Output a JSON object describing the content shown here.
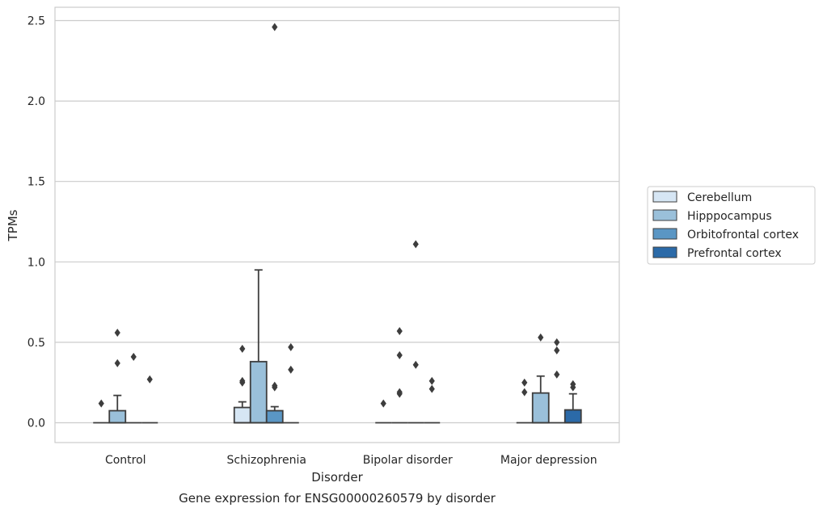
{
  "chart_data": {
    "type": "box",
    "title": "Gene expression for ENSG00000260579 by disorder",
    "xlabel": "Disorder",
    "ylabel": "TPMs",
    "ylim": [
      -0.12,
      2.59
    ],
    "yticks": [
      0.0,
      0.5,
      1.0,
      1.5,
      2.0,
      2.5
    ],
    "ytick_labels": [
      "0.0",
      "0.5",
      "1.0",
      "1.5",
      "2.0",
      "2.5"
    ],
    "grid": "horizontal",
    "legend_position": "right",
    "categories": [
      "Control",
      "Schizophrenia",
      "Bipolar disorder",
      "Major depression"
    ],
    "series": [
      {
        "name": "Cerebellum",
        "color": "#d6e6f4",
        "boxes": [
          {
            "q1": 0,
            "median": 0,
            "q3": 0,
            "whisker_low": 0,
            "whisker_high": 0,
            "outliers": [
              0.12
            ]
          },
          {
            "q1": 0,
            "median": 0,
            "q3": 0.095,
            "whisker_low": 0,
            "whisker_high": 0.13,
            "outliers": [
              0.25,
              0.26,
              0.46
            ]
          },
          {
            "q1": 0,
            "median": 0,
            "q3": 0,
            "whisker_low": 0,
            "whisker_high": 0,
            "outliers": [
              0.12
            ]
          },
          {
            "q1": 0,
            "median": 0,
            "q3": 0,
            "whisker_low": 0,
            "whisker_high": 0,
            "outliers": [
              0.19,
              0.25
            ]
          }
        ]
      },
      {
        "name": "Hipppocampus",
        "color": "#9ac0da",
        "boxes": [
          {
            "q1": 0,
            "median": 0,
            "q3": 0.075,
            "whisker_low": 0,
            "whisker_high": 0.17,
            "outliers": [
              0.37,
              0.56
            ]
          },
          {
            "q1": 0,
            "median": 0,
            "q3": 0.38,
            "whisker_low": 0,
            "whisker_high": 0.95,
            "outliers": []
          },
          {
            "q1": 0,
            "median": 0,
            "q3": 0,
            "whisker_low": 0,
            "whisker_high": 0,
            "outliers": [
              0.18,
              0.19,
              0.42,
              0.57
            ]
          },
          {
            "q1": 0,
            "median": 0,
            "q3": 0.185,
            "whisker_low": 0,
            "whisker_high": 0.29,
            "outliers": [
              0.53
            ]
          }
        ]
      },
      {
        "name": "Orbitofrontal cortex",
        "color": "#5a96c4",
        "boxes": [
          {
            "q1": 0,
            "median": 0,
            "q3": 0,
            "whisker_low": 0,
            "whisker_high": 0,
            "outliers": [
              0.41
            ]
          },
          {
            "q1": 0,
            "median": 0,
            "q3": 0.075,
            "whisker_low": 0,
            "whisker_high": 0.1,
            "outliers": [
              0.22,
              0.23,
              2.46
            ]
          },
          {
            "q1": 0,
            "median": 0,
            "q3": 0,
            "whisker_low": 0,
            "whisker_high": 0,
            "outliers": [
              0.36,
              1.11
            ]
          },
          {
            "q1": 0,
            "median": 0,
            "q3": 0,
            "whisker_low": 0,
            "whisker_high": 0,
            "outliers": [
              0.3,
              0.45,
              0.5
            ]
          }
        ]
      },
      {
        "name": "Prefrontal cortex",
        "color": "#2b6aa8",
        "boxes": [
          {
            "q1": 0,
            "median": 0,
            "q3": 0,
            "whisker_low": 0,
            "whisker_high": 0,
            "outliers": [
              0.27
            ]
          },
          {
            "q1": 0,
            "median": 0,
            "q3": 0,
            "whisker_low": 0,
            "whisker_high": 0,
            "outliers": [
              0.33,
              0.47
            ]
          },
          {
            "q1": 0,
            "median": 0,
            "q3": 0,
            "whisker_low": 0,
            "whisker_high": 0,
            "outliers": [
              0.21,
              0.26
            ]
          },
          {
            "q1": 0,
            "median": 0,
            "q3": 0.08,
            "whisker_low": 0,
            "whisker_high": 0.18,
            "outliers": [
              0.22,
              0.24
            ]
          }
        ]
      }
    ]
  }
}
